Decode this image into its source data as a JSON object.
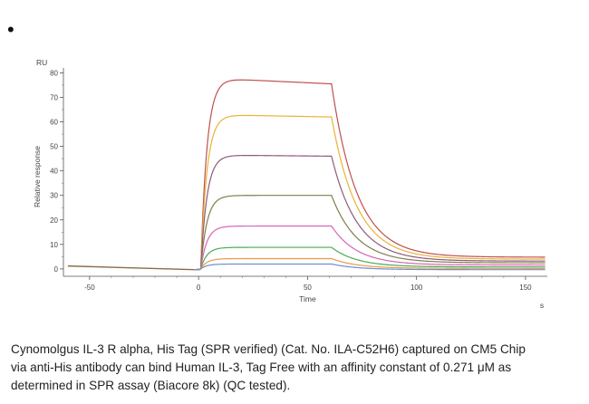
{
  "bullet": "•",
  "chart_data": {
    "type": "line",
    "title": "",
    "ylabel": "Relative response",
    "yunit": "RU",
    "xlabel": "Time",
    "xunit": "s",
    "xlim": [
      -62,
      160
    ],
    "ylim": [
      -3,
      82
    ],
    "xticks": [
      -50,
      0,
      50,
      100,
      150
    ],
    "yticks": [
      0,
      10,
      20,
      30,
      40,
      50,
      60,
      70,
      80
    ],
    "grid": false,
    "legend": "none",
    "baseline": {
      "x": [
        -60,
        -2
      ],
      "y": [
        1.2,
        -0.3
      ]
    },
    "association_start": 1,
    "dissociation_start": 61,
    "end_time": 159,
    "series": [
      {
        "color": "#c0504d",
        "baseline_y": 1.0,
        "plateau": 78,
        "peak": 75.5,
        "end": 4.8
      },
      {
        "color": "#e8b33a",
        "baseline_y": 0.8,
        "plateau": 63,
        "peak": 62.0,
        "end": 4.0
      },
      {
        "color": "#8e5a7a",
        "baseline_y": 0.6,
        "plateau": 46.5,
        "peak": 46.0,
        "end": 3.2
      },
      {
        "color": "#7f7f4a",
        "baseline_y": 0.4,
        "plateau": 30,
        "peak": 30.0,
        "end": 2.5
      },
      {
        "color": "#d664b8",
        "baseline_y": 0.3,
        "plateau": 17.5,
        "peak": 17.5,
        "end": 1.6
      },
      {
        "color": "#4daa55",
        "baseline_y": 0.2,
        "plateau": 8.8,
        "peak": 8.8,
        "end": 0.8
      },
      {
        "color": "#e89a4a",
        "baseline_y": 0.1,
        "plateau": 4.2,
        "peak": 4.2,
        "end": 0.2
      },
      {
        "color": "#6a8fd0",
        "baseline_y": 0.0,
        "plateau": 2.0,
        "peak": 2.0,
        "end": -0.3
      }
    ]
  },
  "caption": [
    "Cynomolgus IL-3 R alpha, His Tag (SPR verified) (Cat. No. ILA-C52H6) captured on CM5 Chip",
    "via anti-His antibody can bind Human IL-3, Tag Free with an affinity constant of 0.271 μM as",
    "determined in SPR assay (Biacore 8k) (QC tested)."
  ]
}
